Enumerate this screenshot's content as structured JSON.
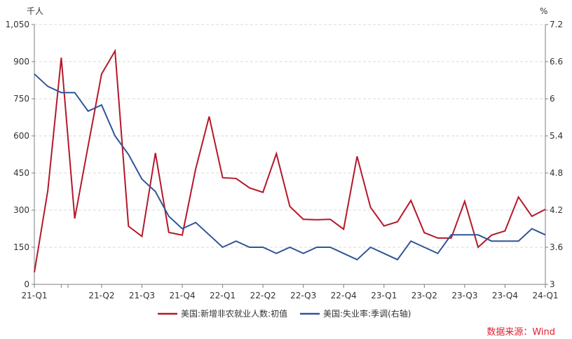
{
  "chart_data": {
    "type": "line",
    "left_unit": "千人",
    "right_unit": "%",
    "y_left": {
      "min": 0,
      "max": 1050,
      "ticks": [
        0,
        150,
        300,
        450,
        600,
        750,
        900,
        1050
      ],
      "tick_labels": [
        "0",
        "150",
        "300",
        "450",
        "600",
        "750",
        "900",
        "1,050"
      ]
    },
    "y_right": {
      "min": 3,
      "max": 7.2,
      "ticks": [
        3,
        3.6,
        4.2,
        4.8,
        5.4,
        6,
        6.6,
        7.2
      ],
      "tick_labels": [
        "3",
        "3.6",
        "4.2",
        "4.8",
        "5.4",
        "6",
        "6.6",
        "7.2"
      ]
    },
    "x": [
      "2021-01",
      "2021-02",
      "2021-03",
      "2021-04",
      "2021-05",
      "2021-06",
      "2021-07",
      "2021-08",
      "2021-09",
      "2021-10",
      "2021-11",
      "2021-12",
      "2022-01",
      "2022-02",
      "2022-03",
      "2022-04",
      "2022-05",
      "2022-06",
      "2022-07",
      "2022-08",
      "2022-09",
      "2022-10",
      "2022-11",
      "2022-12",
      "2023-01",
      "2023-02",
      "2023-03",
      "2023-04",
      "2023-05",
      "2023-06",
      "2023-07",
      "2023-08",
      "2023-09",
      "2023-10",
      "2023-11",
      "2023-12",
      "2024-01",
      "2024-02",
      "2024-03"
    ],
    "x_tick_labels": [
      {
        "label": "21-Q1",
        "index": 0
      },
      {
        "label": "21-Q2",
        "index": 5
      },
      {
        "label": "21-Q3",
        "index": 8
      },
      {
        "label": "21-Q4",
        "index": 11
      },
      {
        "label": "22-Q1",
        "index": 14
      },
      {
        "label": "22-Q2",
        "index": 17
      },
      {
        "label": "22-Q3",
        "index": 20
      },
      {
        "label": "22-Q4",
        "index": 23
      },
      {
        "label": "23-Q1",
        "index": 26
      },
      {
        "label": "23-Q2",
        "index": 29
      },
      {
        "label": "23-Q3",
        "index": 32
      },
      {
        "label": "23-Q4",
        "index": 35
      },
      {
        "label": "24-Q1",
        "index": 38
      }
    ],
    "x_minor_ticks": [
      0,
      2,
      5,
      8,
      11,
      14,
      17,
      20,
      23,
      26,
      29,
      32,
      35,
      38
    ],
    "series": [
      {
        "name": "美国:新增非农就业人数:初值",
        "axis": "left",
        "color": "#b5172a",
        "values": [
          49,
          379,
          916,
          266,
          559,
          850,
          943,
          235,
          194,
          531,
          210,
          199,
          467,
          678,
          431,
          428,
          390,
          372,
          528,
          315,
          263,
          261,
          263,
          223,
          517,
          311,
          236,
          253,
          339,
          209,
          187,
          187,
          336,
          150,
          199,
          216,
          353,
          275,
          303
        ]
      },
      {
        "name": "美国:失业率:季调(右轴)",
        "axis": "right",
        "color": "#2f5597",
        "values": [
          6.4,
          6.2,
          6.1,
          6.1,
          5.8,
          5.9,
          5.4,
          5.1,
          4.7,
          4.5,
          4.1,
          3.9,
          4.0,
          3.8,
          3.6,
          3.7,
          3.6,
          3.6,
          3.5,
          3.6,
          3.5,
          3.6,
          3.6,
          3.5,
          3.4,
          3.6,
          3.5,
          3.4,
          3.7,
          3.6,
          3.5,
          3.8,
          3.8,
          3.8,
          3.7,
          3.7,
          3.7,
          3.9,
          3.8
        ]
      }
    ],
    "grid": true,
    "legend_position": "bottom-center"
  },
  "source_text": "数据来源：Wind",
  "colors": {
    "axis": "#7f7f7f",
    "grid": "#d9d9d9",
    "source": "#e0212f"
  }
}
